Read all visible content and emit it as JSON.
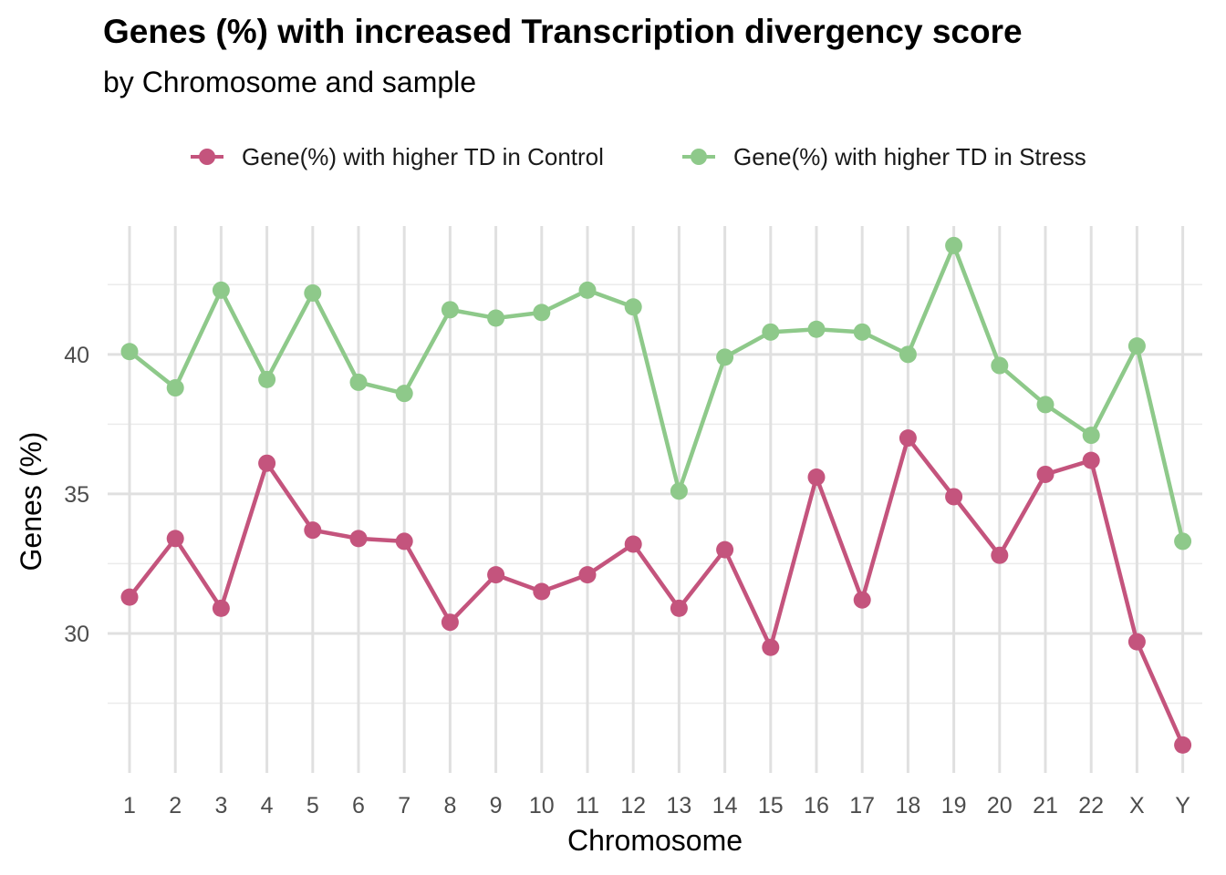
{
  "chart_data": {
    "type": "line",
    "title": "Genes (%) with increased Transcription divergency score",
    "subtitle": "by Chromosome and sample",
    "xlabel": "Chromosome",
    "ylabel": "Genes (%)",
    "categories": [
      "1",
      "2",
      "3",
      "4",
      "5",
      "6",
      "7",
      "8",
      "9",
      "10",
      "11",
      "12",
      "13",
      "14",
      "15",
      "16",
      "17",
      "18",
      "19",
      "20",
      "21",
      "22",
      "X",
      "Y"
    ],
    "ylim": [
      25.0,
      44.6
    ],
    "yticks": [
      30,
      35,
      40
    ],
    "ytick_labels": [
      "30",
      "35",
      "40"
    ],
    "grid": true,
    "legend_position": "top",
    "series": [
      {
        "name": "Gene(%) with higher TD in Control",
        "color": "#c4547d",
        "values": [
          31.3,
          33.4,
          30.9,
          36.1,
          33.7,
          33.4,
          33.3,
          30.4,
          32.1,
          31.5,
          32.1,
          33.2,
          30.9,
          33.0,
          29.5,
          35.6,
          31.2,
          37.0,
          34.9,
          32.8,
          35.7,
          36.2,
          29.7,
          26.0
        ]
      },
      {
        "name": "Gene(%) with higher TD in Stress",
        "color": "#8ec98a",
        "values": [
          40.1,
          38.8,
          42.3,
          39.1,
          42.2,
          39.0,
          38.6,
          41.6,
          41.3,
          41.5,
          42.3,
          41.7,
          35.1,
          39.9,
          40.8,
          40.9,
          40.8,
          40.0,
          43.9,
          39.6,
          38.2,
          37.1,
          40.3,
          33.3
        ]
      }
    ]
  }
}
